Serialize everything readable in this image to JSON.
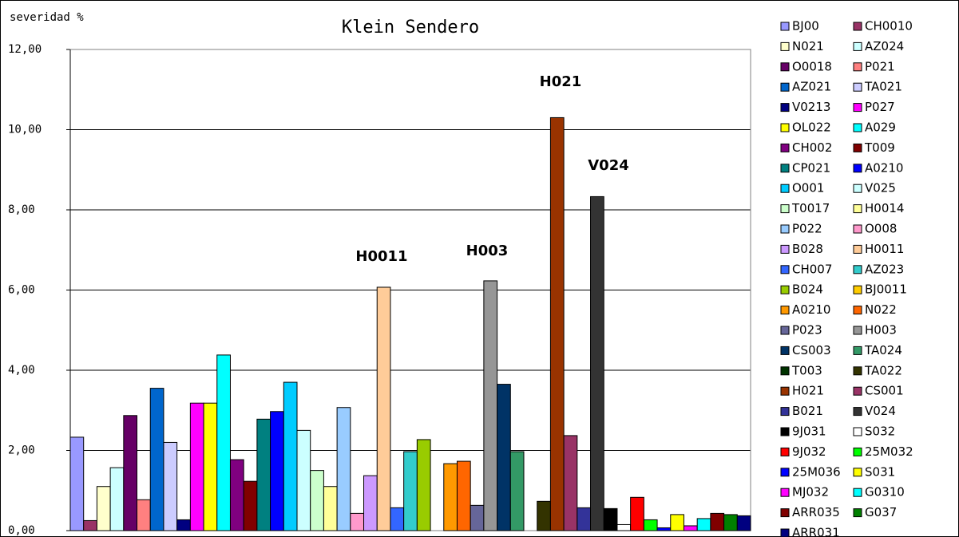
{
  "chart_data": {
    "type": "bar",
    "title": "Klein Sendero",
    "y_label": "severidad  %",
    "categories": [
      "BJ00",
      "CH0010",
      "N021",
      "AZ024",
      "O0018",
      "P021",
      "AZ021",
      "TA021",
      "V0213",
      "P027",
      "OL022",
      "A029",
      "CH002",
      "T009",
      "CP021",
      "A0210",
      "O001",
      "V025",
      "T0017",
      "H0014",
      "P022",
      "O008",
      "B028",
      "H0011",
      "CH007",
      "AZ023",
      "B024",
      "BJ0011",
      "A0210",
      "N022",
      "P023",
      "H003",
      "CS003",
      "TA024",
      "T003",
      "TA022",
      "H021",
      "CS001",
      "B021",
      "V024",
      "9J031",
      "S032",
      "9J032",
      "25M032",
      "25M036",
      "S031",
      "MJ032",
      "G0310",
      "ARR035",
      "G037",
      "ARR031"
    ],
    "values": [
      2.33,
      0.25,
      1.1,
      1.57,
      2.87,
      0.77,
      3.55,
      2.2,
      0.27,
      3.18,
      3.18,
      4.38,
      1.77,
      1.23,
      2.78,
      2.97,
      3.7,
      2.5,
      1.5,
      1.1,
      3.07,
      0.43,
      1.37,
      6.07,
      0.57,
      1.97,
      2.27,
      0,
      1.67,
      1.73,
      0.63,
      6.23,
      3.65,
      1.97,
      0,
      0.73,
      10.3,
      2.37,
      0.57,
      8.33,
      0.55,
      0.15,
      0.83,
      0.27,
      0.07,
      0.4,
      0.12,
      0.3,
      0.43,
      0.4,
      0.37
    ],
    "colors": [
      "#9999ff",
      "#993366",
      "#ffffcc",
      "#ccffff",
      "#660066",
      "#ff8080",
      "#0066cc",
      "#ccccff",
      "#000080",
      "#ff00ff",
      "#ffff00",
      "#00ffff",
      "#800080",
      "#800000",
      "#008080",
      "#0000ff",
      "#00ccff",
      "#ccffff",
      "#ccffcc",
      "#ffff99",
      "#99ccff",
      "#ff99cc",
      "#cc99ff",
      "#ffcc99",
      "#3366ff",
      "#33cccc",
      "#99cc00",
      "#ffcc00",
      "#ff9900",
      "#ff6600",
      "#666699",
      "#969696",
      "#003366",
      "#339966",
      "#003300",
      "#333300",
      "#993300",
      "#993366",
      "#333399",
      "#333333",
      "#000000",
      "#ffffff",
      "#ff0000",
      "#00ff00",
      "#0000ff",
      "#ffff00",
      "#ff00ff",
      "#00ffff",
      "#800000",
      "#008000",
      "#000080"
    ],
    "ylim": [
      0,
      12
    ],
    "yticks": [
      {
        "value": 0,
        "label": "0,00"
      },
      {
        "value": 2,
        "label": "2,00"
      },
      {
        "value": 4,
        "label": "4,00"
      },
      {
        "value": 6,
        "label": "6,00"
      },
      {
        "value": 8,
        "label": "8,00"
      },
      {
        "value": 10,
        "label": "10,00"
      },
      {
        "value": 12,
        "label": "12,00"
      }
    ],
    "grid": true,
    "annotations": [
      {
        "text": "H0011",
        "color": "#000000"
      },
      {
        "text": "H003",
        "color": "#000000"
      },
      {
        "text": "H021",
        "color": "#ff0000"
      },
      {
        "text": "V024",
        "color": "#000000"
      }
    ]
  }
}
